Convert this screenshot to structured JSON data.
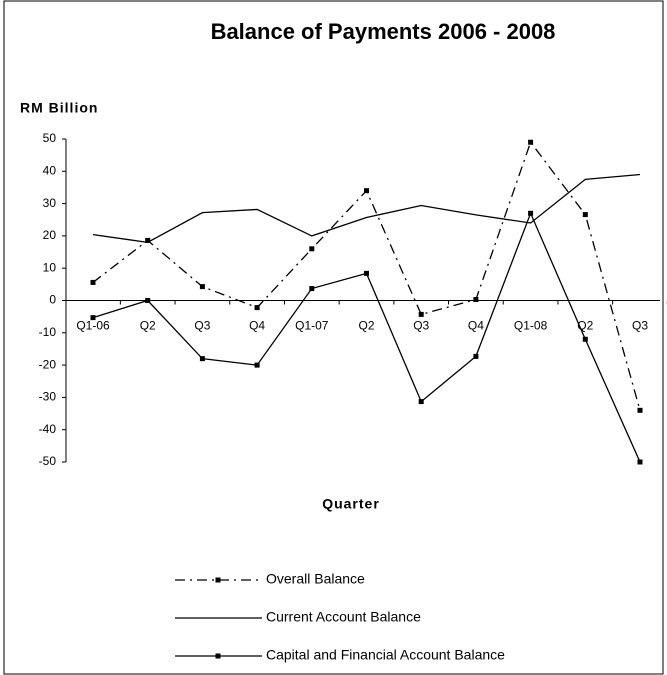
{
  "chart_data": {
    "type": "line",
    "title": "Balance of Payments 2006 - 2008",
    "y_label": "RM Billion",
    "x_label": "Quarter",
    "categories": [
      "Q1-06",
      "Q2",
      "Q3",
      "Q4",
      "Q1-07",
      "Q2",
      "Q3",
      "Q4",
      "Q1-08",
      "Q2",
      "Q3"
    ],
    "ylim": [
      -50,
      50
    ],
    "yticks": [
      -50,
      -40,
      -30,
      -20,
      -10,
      0,
      10,
      20,
      30,
      40,
      50
    ],
    "series": [
      {
        "name": "Overall Balance",
        "color": "#000000",
        "dash": "dashdot",
        "marker": "square",
        "values": [
          5.6,
          18.6,
          4.3,
          -2.2,
          16,
          34,
          -4.3,
          0.3,
          49,
          26.6,
          -34
        ]
      },
      {
        "name": "Current Account Balance",
        "color": "#000000",
        "dash": "solid",
        "marker": "none",
        "values": [
          20.4,
          18,
          27.2,
          28.2,
          20,
          25.7,
          29.4,
          26.5,
          24,
          37.5,
          39
        ]
      },
      {
        "name": "Capital and Financial Account Balance",
        "color": "#000000",
        "dash": "solid",
        "marker": "square",
        "values": [
          -5.3,
          0,
          -18,
          -20,
          3.7,
          8.4,
          -31.3,
          -17.3,
          27,
          -12,
          -50
        ]
      }
    ]
  }
}
